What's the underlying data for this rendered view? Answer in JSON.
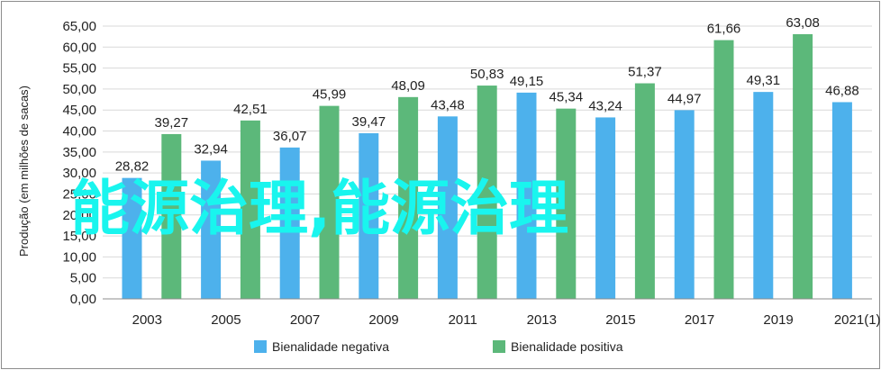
{
  "chart_data": {
    "type": "bar",
    "ylabel": "Produção (em milhões de sacas)",
    "ylim": [
      0,
      65
    ],
    "ytick_step": 5,
    "y_ticks": [
      "0,00",
      "5,00",
      "10,00",
      "15,00",
      "20,00",
      "25,00",
      "30,00",
      "35,00",
      "40,00",
      "45,00",
      "50,00",
      "55,00",
      "60,00",
      "65,00"
    ],
    "x_tick_labels": [
      "2003",
      "2005",
      "2007",
      "2009",
      "2011",
      "2013",
      "2015",
      "2017",
      "2019",
      "2021(1)"
    ],
    "grid": true,
    "legend_position": "bottom",
    "bars": [
      {
        "year": "2002",
        "value": 28.82,
        "label": "28,82",
        "series": 0
      },
      {
        "year": "2003",
        "value": 39.27,
        "label": "39,27",
        "series": 1
      },
      {
        "year": "2004",
        "value": 32.94,
        "label": "32,94",
        "series": 0
      },
      {
        "year": "2005",
        "value": 42.51,
        "label": "42,51",
        "series": 1
      },
      {
        "year": "2006",
        "value": 36.07,
        "label": "36,07",
        "series": 0
      },
      {
        "year": "2007",
        "value": 45.99,
        "label": "45,99",
        "series": 1
      },
      {
        "year": "2008",
        "value": 39.47,
        "label": "39,47",
        "series": 0
      },
      {
        "year": "2009",
        "value": 48.09,
        "label": "48,09",
        "series": 1
      },
      {
        "year": "2010",
        "value": 43.48,
        "label": "43,48",
        "series": 0
      },
      {
        "year": "2011",
        "value": 50.83,
        "label": "50,83",
        "series": 1
      },
      {
        "year": "2012",
        "value": 49.15,
        "label": "49,15",
        "series": 0
      },
      {
        "year": "2013",
        "value": 45.34,
        "label": "45,34",
        "series": 1
      },
      {
        "year": "2014",
        "value": 43.24,
        "label": "43,24",
        "series": 0
      },
      {
        "year": "2015",
        "value": 51.37,
        "label": "51,37",
        "series": 1
      },
      {
        "year": "2016",
        "value": 44.97,
        "label": "44,97",
        "series": 0
      },
      {
        "year": "2017",
        "value": 61.66,
        "label": "61,66",
        "series": 1
      },
      {
        "year": "2018",
        "value": 49.31,
        "label": "49,31",
        "series": 0
      },
      {
        "year": "2019",
        "value": 63.08,
        "label": "63,08",
        "series": 1
      },
      {
        "year": "2020",
        "value": 46.88,
        "label": "46,88",
        "series": 0
      }
    ],
    "series": [
      {
        "name": "Bienalidade negativa",
        "color": "#4db1ec"
      },
      {
        "name": "Bienalidade positiva",
        "color": "#5cb87a"
      }
    ]
  },
  "overlay_text": "能源治理,能源治理",
  "colors": {
    "grid": "#d9d9d9",
    "axis": "#8c8c8c",
    "watermark": "#19f5ee"
  }
}
